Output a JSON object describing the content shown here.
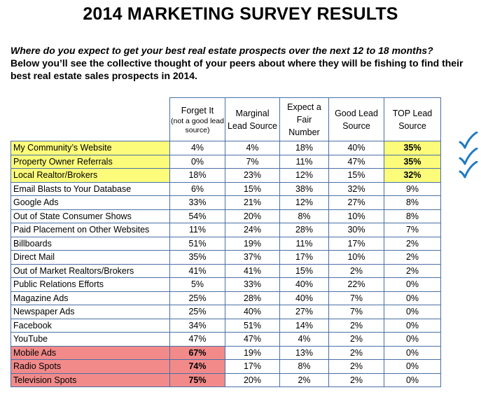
{
  "title": "2014 MARKETING SURVEY RESULTS",
  "question": "Where do you expect to get your best real estate prospects over the next 12 to 18 months?",
  "intro": "Below you’ll see the collective thought of your peers about where they will be fishing to find their best real estate sales prospects in 2014.",
  "headers": {
    "forget_it": "Forget It",
    "forget_it_note": "(not a good lead source)",
    "marginal": "Marginal Lead Source",
    "fair": "Expect a Fair Number",
    "good": "Good Lead Source",
    "top": "TOP Lead Source"
  },
  "rows": [
    {
      "label": "My Community’s Website",
      "forget": "4%",
      "marginal": "4%",
      "fair": "18%",
      "good": "40%",
      "top": "35%"
    },
    {
      "label": "Property Owner Referrals",
      "forget": "0%",
      "marginal": "7%",
      "fair": "11%",
      "good": "47%",
      "top": "35%"
    },
    {
      "label": "Local Realtor/Brokers",
      "forget": "18%",
      "marginal": "23%",
      "fair": "12%",
      "good": "15%",
      "top": "32%"
    },
    {
      "label": "Email Blasts to Your Database",
      "forget": "6%",
      "marginal": "15%",
      "fair": "38%",
      "good": "32%",
      "top": "9%"
    },
    {
      "label": "Google Ads",
      "forget": "33%",
      "marginal": "21%",
      "fair": "12%",
      "good": "27%",
      "top": "8%"
    },
    {
      "label": "Out of State Consumer Shows",
      "forget": "54%",
      "marginal": "20%",
      "fair": "8%",
      "good": "10%",
      "top": "8%"
    },
    {
      "label": "Paid Placement on Other Websites",
      "forget": "11%",
      "marginal": "24%",
      "fair": "28%",
      "good": "30%",
      "top": "7%"
    },
    {
      "label": "Billboards",
      "forget": "51%",
      "marginal": "19%",
      "fair": "11%",
      "good": "17%",
      "top": "2%"
    },
    {
      "label": "Direct Mail",
      "forget": "35%",
      "marginal": "37%",
      "fair": "17%",
      "good": "10%",
      "top": "2%"
    },
    {
      "label": "Out of Market Realtors/Brokers",
      "forget": "41%",
      "marginal": "41%",
      "fair": "15%",
      "good": "2%",
      "top": "2%"
    },
    {
      "label": "Public Relations Efforts",
      "forget": "5%",
      "marginal": "33%",
      "fair": "40%",
      "good": "22%",
      "top": "0%"
    },
    {
      "label": "Magazine Ads",
      "forget": "25%",
      "marginal": "28%",
      "fair": "40%",
      "good": "7%",
      "top": "0%"
    },
    {
      "label": "Newspaper Ads",
      "forget": "25%",
      "marginal": "40%",
      "fair": "27%",
      "good": "7%",
      "top": "0%"
    },
    {
      "label": "Facebook",
      "forget": "34%",
      "marginal": "51%",
      "fair": "14%",
      "good": "2%",
      "top": "0%"
    },
    {
      "label": "YouTube",
      "forget": "47%",
      "marginal": "47%",
      "fair": "4%",
      "good": "2%",
      "top": "0%"
    },
    {
      "label": "Mobile Ads",
      "forget": "67%",
      "marginal": "19%",
      "fair": "13%",
      "good": "2%",
      "top": "0%"
    },
    {
      "label": "Radio Spots",
      "forget": "74%",
      "marginal": "17%",
      "fair": "8%",
      "good": "2%",
      "top": "0%"
    },
    {
      "label": "Television Spots",
      "forget": "75%",
      "marginal": "20%",
      "fair": "2%",
      "good": "2%",
      "top": "0%"
    }
  ],
  "highlight_colors": {
    "top_sources": "#fcfc7a",
    "worst_sources": "#f28a8a",
    "check": "#1f7bc4",
    "border": "#4a6fa5"
  },
  "checkmark_icon": "checkmark-icon"
}
